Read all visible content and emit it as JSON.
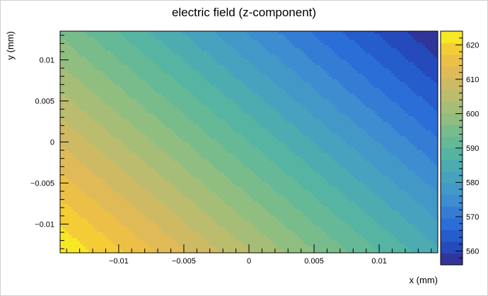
{
  "chart_data": {
    "type": "heatmap",
    "title": "electric field (z-component)",
    "xlabel": "x (mm)",
    "ylabel": "y (mm)",
    "xlim": [
      -0.0145,
      0.0145
    ],
    "ylim": [
      -0.0135,
      0.0135
    ],
    "x_ticks": [
      -0.01,
      -0.005,
      0,
      0.005,
      0.01
    ],
    "x_tick_labels": [
      "−0.01",
      "−0.005",
      "0",
      "0.005",
      "0.01"
    ],
    "y_ticks": [
      -0.01,
      -0.005,
      0,
      0.005,
      0.01
    ],
    "y_tick_labels": [
      "−0.01",
      "−0.005",
      "0",
      "0.005",
      "0.01"
    ],
    "colorbar": {
      "range": [
        556,
        624
      ],
      "ticks": [
        560,
        570,
        580,
        590,
        600,
        610,
        620
      ],
      "tick_labels": [
        "560",
        "570",
        "580",
        "590",
        "600",
        "610",
        "620"
      ],
      "levels": 20
    },
    "field_corners": {
      "bottom_left": 624,
      "top_left": 596,
      "bottom_right": 584,
      "top_right": 556
    },
    "colormap": [
      "#352a87",
      "#2251c7",
      "#2d70d8",
      "#3d8cd0",
      "#45a0c1",
      "#4fb2a7",
      "#6bbb92",
      "#95be7e",
      "#bdbc6e",
      "#dfb95a",
      "#f3c43c",
      "#f9f51c"
    ]
  }
}
